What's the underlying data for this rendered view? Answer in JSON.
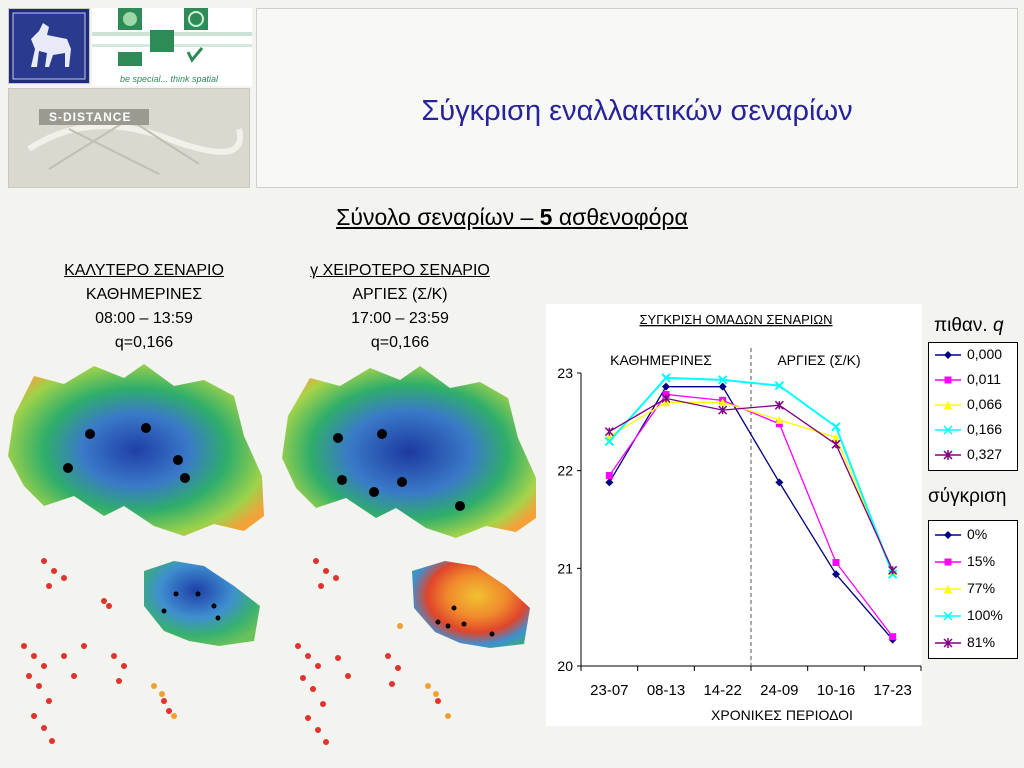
{
  "slide": {
    "title": "Σύγκριση εναλλακτικών σεναρίων",
    "subtitle_pre": "Σύνολο σεναρίων – ",
    "subtitle_bold": "5",
    "subtitle_post": " ασθενοφόρα"
  },
  "logos": {
    "banner_caption": "be special... think spatial",
    "sdistance_text": "S-DISTANCE"
  },
  "best_scenario": {
    "heading": "ΚΑΛΥΤΕΡΟ ΣΕΝΑΡΙΟ",
    "day": "ΚΑΘΗΜΕΡΙΝΕΣ",
    "time": "08:00 – 13:59",
    "q": "q=0,166"
  },
  "worst_scenario": {
    "heading": "γ ΧΕΙΡΟΤΕΡΟ ΣΕΝΑΡΙΟ",
    "day": "ΑΡΓΙΕΣ (Σ/Κ)",
    "time": "17:00 – 23:59",
    "q": "q=0,166"
  },
  "chart_data": {
    "type": "line",
    "title": "ΣΥΓΚΡΙΣΗ ΟΜΑΔΩΝ ΣΕΝΑΡΙΩΝ",
    "section_labels": [
      "ΚΑΘΗΜΕΡΙΝΕΣ",
      "ΑΡΓΙΕΣ (Σ/Κ)"
    ],
    "xlabel": "ΧΡΟΝΙΚΕΣ ΠΕΡΙΟΔΟΙ",
    "ylabel": "",
    "categories": [
      "23-07",
      "08-13",
      "14-22",
      "24-09",
      "10-16",
      "17-23"
    ],
    "ylim": [
      20,
      23
    ],
    "yticks": [
      20,
      21,
      22,
      23
    ],
    "divider_between": [
      2,
      3
    ],
    "grid": false,
    "series": [
      {
        "name": "0,000",
        "color": "#000080",
        "marker": "diamond",
        "values": [
          21.88,
          22.86,
          22.86,
          21.88,
          20.94,
          20.27
        ]
      },
      {
        "name": "0,011",
        "color": "#ff00ff",
        "marker": "square",
        "values": [
          21.95,
          22.78,
          22.72,
          22.48,
          21.06,
          20.3
        ]
      },
      {
        "name": "0,066",
        "color": "#ffff00",
        "marker": "triangle",
        "values": [
          22.35,
          22.7,
          22.7,
          22.52,
          22.34,
          20.97
        ]
      },
      {
        "name": "0,166",
        "color": "#00ffff",
        "marker": "x",
        "values": [
          22.3,
          22.95,
          22.93,
          22.87,
          22.45,
          20.94
        ]
      },
      {
        "name": "0,327",
        "color": "#800080",
        "marker": "star",
        "values": [
          22.4,
          22.74,
          22.62,
          22.67,
          22.27,
          20.98
        ]
      }
    ]
  },
  "legend_prob": {
    "title": "πιθαν.",
    "title_var": "q",
    "entries": [
      "0,000",
      "0,011",
      "0,066",
      "0,166",
      "0,327"
    ]
  },
  "legend_compare": {
    "title": "σύγκριση",
    "entries": [
      "0%",
      "15%",
      "77%",
      "100%",
      "81%"
    ]
  }
}
